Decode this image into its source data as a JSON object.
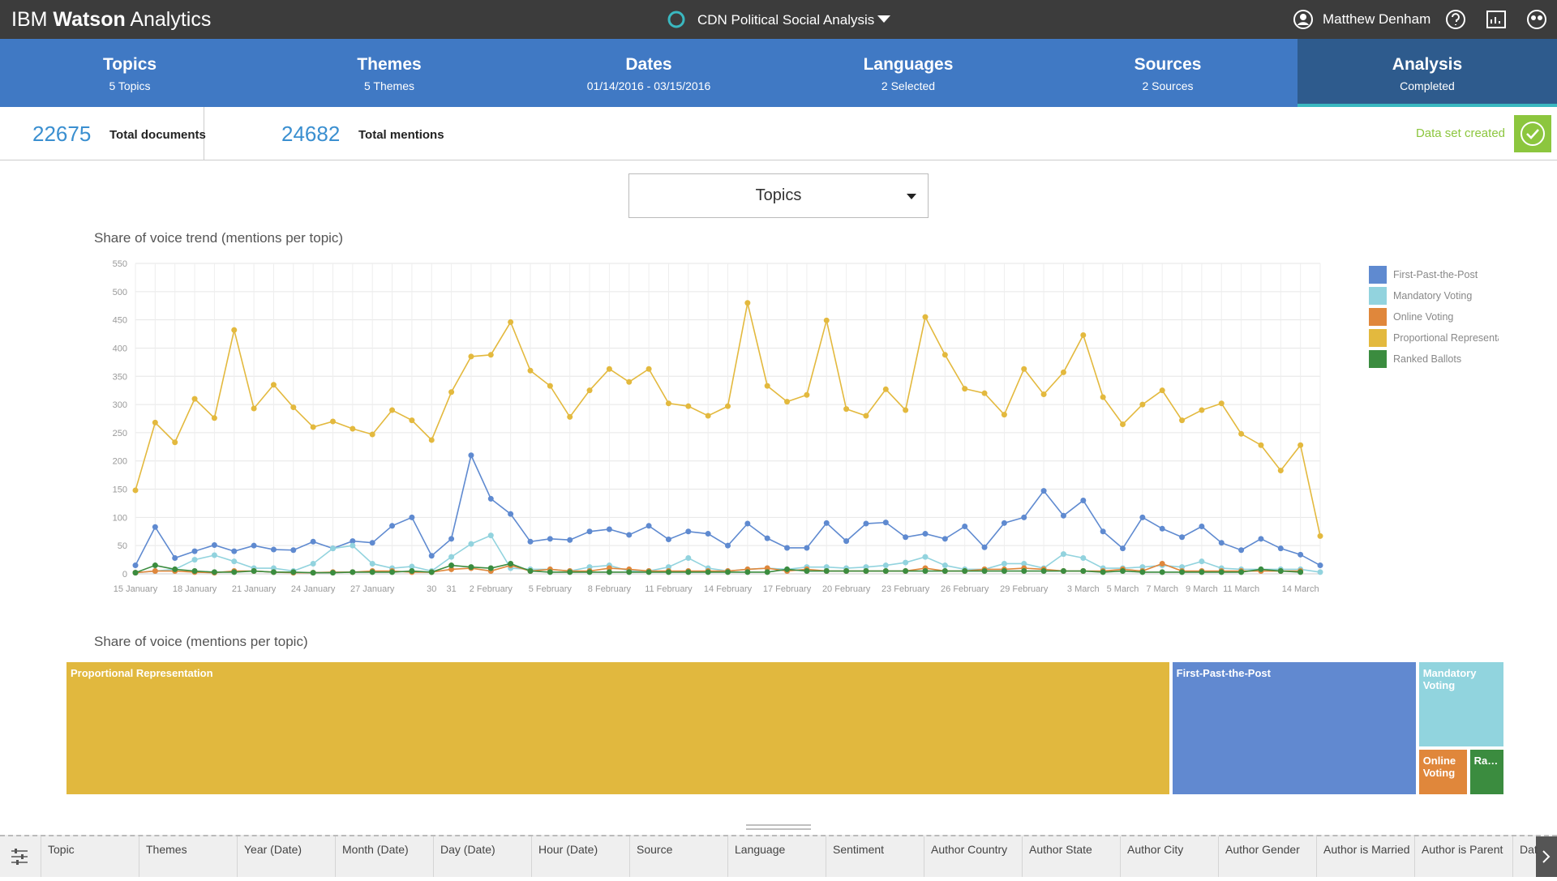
{
  "header": {
    "brand": [
      "IBM",
      "Watson",
      "Analytics"
    ],
    "project": "CDN Political Social Analysis",
    "user": "Matthew Denham"
  },
  "tabs": [
    {
      "title": "Topics",
      "subtitle": "5 Topics"
    },
    {
      "title": "Themes",
      "subtitle": "5 Themes"
    },
    {
      "title": "Dates",
      "subtitle": "01/14/2016 - 03/15/2016"
    },
    {
      "title": "Languages",
      "subtitle": "2 Selected"
    },
    {
      "title": "Sources",
      "subtitle": "2 Sources"
    },
    {
      "title": "Analysis",
      "subtitle": "Completed"
    }
  ],
  "stats": [
    {
      "value": 22675,
      "label": "Total documents"
    },
    {
      "value": 24682,
      "label": "Total mentions"
    }
  ],
  "status": "Data set created",
  "selector": "Topics",
  "chart_data": [
    {
      "type": "line",
      "title": "Share of voice trend (mentions per topic)",
      "categories": [
        "15 January",
        null,
        null,
        "18 January",
        null,
        null,
        "21 January",
        null,
        null,
        "24 January",
        null,
        null,
        "27 January",
        null,
        null,
        "30",
        "31",
        null,
        "2 February",
        null,
        null,
        "5 February",
        null,
        null,
        "8 February",
        null,
        null,
        "11 February",
        null,
        null,
        "14 February",
        null,
        null,
        "17 February",
        null,
        null,
        "20 February",
        null,
        null,
        "23 February",
        null,
        null,
        "26 February",
        null,
        null,
        "29 February",
        null,
        null,
        "3 March",
        null,
        "5 March",
        null,
        "7 March",
        null,
        "9 March",
        null,
        "11 March",
        null,
        null,
        "14 March",
        null
      ],
      "ylim": [
        0,
        550
      ],
      "yticks": [
        0,
        50,
        100,
        150,
        200,
        250,
        300,
        350,
        400,
        450,
        500,
        550
      ],
      "grid": true,
      "legend": "right",
      "series": [
        {
          "name": "First-Past-the-Post",
          "color": "#5f8ad0",
          "values": [
            15,
            83,
            28,
            40,
            51,
            40,
            50,
            43,
            42,
            57,
            45,
            58,
            55,
            85,
            100,
            32,
            62,
            210,
            133,
            106,
            57,
            62,
            60,
            75,
            79,
            69,
            85,
            61,
            75,
            71,
            50,
            89,
            63,
            46,
            46,
            90,
            58,
            89,
            91,
            65,
            71,
            62,
            84,
            47,
            90,
            100,
            147,
            103,
            130,
            75,
            45,
            100,
            80,
            65,
            84,
            55,
            42,
            62,
            45,
            34,
            15
          ]
        },
        {
          "name": "Mandatory Voting",
          "color": "#92d3de",
          "values": [
            2,
            5,
            8,
            25,
            33,
            22,
            10,
            10,
            5,
            18,
            45,
            50,
            18,
            10,
            13,
            5,
            30,
            53,
            68,
            10,
            8,
            8,
            5,
            12,
            15,
            5,
            5,
            12,
            28,
            10,
            5,
            8,
            10,
            8,
            12,
            12,
            10,
            12,
            15,
            20,
            30,
            15,
            8,
            8,
            18,
            18,
            10,
            35,
            28,
            10,
            10,
            12,
            15,
            12,
            22,
            10,
            8,
            8,
            8,
            8,
            3
          ]
        },
        {
          "name": "Online Voting",
          "color": "#e0873b",
          "values": [
            2,
            5,
            5,
            3,
            2,
            5,
            5,
            3,
            2,
            2,
            3,
            3,
            5,
            5,
            3,
            3,
            8,
            10,
            5,
            15,
            5,
            8,
            5,
            5,
            10,
            8,
            5,
            5,
            5,
            5,
            5,
            8,
            10,
            5,
            8,
            5,
            5,
            5,
            5,
            5,
            10,
            5,
            5,
            8,
            8,
            10,
            8,
            5,
            5,
            5,
            8,
            5,
            18,
            5,
            5,
            5,
            5,
            5,
            5,
            5,
            null
          ]
        },
        {
          "name": "Proportional Representation",
          "color": "#e3b93e",
          "values": [
            148,
            268,
            233,
            310,
            276,
            432,
            293,
            335,
            295,
            260,
            270,
            257,
            247,
            290,
            272,
            237,
            322,
            385,
            388,
            446,
            360,
            333,
            278,
            325,
            363,
            340,
            363,
            302,
            297,
            280,
            297,
            480,
            333,
            305,
            317,
            449,
            292,
            280,
            327,
            290,
            455,
            388,
            328,
            320,
            282,
            363,
            318,
            357,
            423,
            313,
            265,
            300,
            325,
            272,
            290,
            302,
            248,
            228,
            183,
            228,
            67
          ]
        },
        {
          "name": "Ranked Ballots",
          "color": "#3b8c3f",
          "values": [
            2,
            15,
            8,
            5,
            3,
            3,
            5,
            3,
            3,
            2,
            2,
            3,
            3,
            3,
            5,
            3,
            15,
            12,
            10,
            18,
            5,
            3,
            3,
            3,
            3,
            3,
            3,
            3,
            3,
            3,
            3,
            3,
            3,
            8,
            5,
            5,
            5,
            5,
            5,
            5,
            5,
            5,
            5,
            5,
            5,
            5,
            5,
            5,
            5,
            3,
            5,
            3,
            3,
            3,
            3,
            3,
            3,
            8,
            5,
            3,
            null
          ]
        }
      ]
    },
    {
      "type": "treemap",
      "title": "Share of voice (mentions per topic)",
      "categories": [
        "Proportional Representation",
        "First-Past-the-Post",
        "Mandatory Voting",
        "Online Voting",
        "Ranked Ballots"
      ],
      "values": [
        18950,
        4225,
        975,
        308,
        222
      ],
      "colors": [
        "#e1b83e",
        "#6189d0",
        "#91d4de",
        "#e0873b",
        "#3b8c3f"
      ]
    }
  ],
  "columns": [
    "Topic",
    "Themes",
    "Year (Date)",
    "Month (Date)",
    "Day (Date)",
    "Hour (Date)",
    "Source",
    "Language",
    "Sentiment",
    "Author Country",
    "Author State",
    "Author City",
    "Author Gender",
    "Author is Married",
    "Author is Parent",
    "Dat"
  ]
}
